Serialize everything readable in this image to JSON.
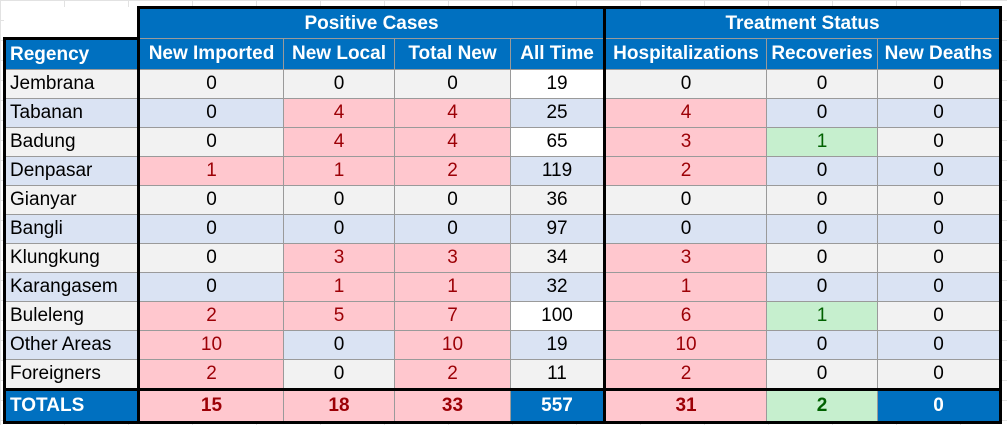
{
  "groups": {
    "positive_cases": "Positive Cases",
    "treatment_status": "Treatment Status"
  },
  "columns": [
    "Regency",
    "New Imported",
    "New Local",
    "Total New",
    "All Time",
    "Hospitalizations",
    "Recoveries",
    "New Deaths"
  ],
  "rows": [
    {
      "regency": "Jembrana",
      "new_imported": "0",
      "new_local": "0",
      "total_new": "0",
      "all_time": "19",
      "hospitalizations": "0",
      "recoveries": "0",
      "new_deaths": "0"
    },
    {
      "regency": "Tabanan",
      "new_imported": "0",
      "new_local": "4",
      "total_new": "4",
      "all_time": "25",
      "hospitalizations": "4",
      "recoveries": "0",
      "new_deaths": "0"
    },
    {
      "regency": "Badung",
      "new_imported": "0",
      "new_local": "4",
      "total_new": "4",
      "all_time": "65",
      "hospitalizations": "3",
      "recoveries": "1",
      "new_deaths": "0"
    },
    {
      "regency": "Denpasar",
      "new_imported": "1",
      "new_local": "1",
      "total_new": "2",
      "all_time": "119",
      "hospitalizations": "2",
      "recoveries": "0",
      "new_deaths": "0"
    },
    {
      "regency": "Gianyar",
      "new_imported": "0",
      "new_local": "0",
      "total_new": "0",
      "all_time": "36",
      "hospitalizations": "0",
      "recoveries": "0",
      "new_deaths": "0"
    },
    {
      "regency": "Bangli",
      "new_imported": "0",
      "new_local": "0",
      "total_new": "0",
      "all_time": "97",
      "hospitalizations": "0",
      "recoveries": "0",
      "new_deaths": "0"
    },
    {
      "regency": "Klungkung",
      "new_imported": "0",
      "new_local": "3",
      "total_new": "3",
      "all_time": "34",
      "hospitalizations": "3",
      "recoveries": "0",
      "new_deaths": "0"
    },
    {
      "regency": "Karangasem",
      "new_imported": "0",
      "new_local": "1",
      "total_new": "1",
      "all_time": "32",
      "hospitalizations": "1",
      "recoveries": "0",
      "new_deaths": "0"
    },
    {
      "regency": "Buleleng",
      "new_imported": "2",
      "new_local": "5",
      "total_new": "7",
      "all_time": "100",
      "hospitalizations": "6",
      "recoveries": "1",
      "new_deaths": "0"
    },
    {
      "regency": "Other Areas",
      "new_imported": "10",
      "new_local": "0",
      "total_new": "10",
      "all_time": "19",
      "hospitalizations": "10",
      "recoveries": "0",
      "new_deaths": "0"
    },
    {
      "regency": "Foreigners",
      "new_imported": "2",
      "new_local": "0",
      "total_new": "2",
      "all_time": "11",
      "hospitalizations": "2",
      "recoveries": "0",
      "new_deaths": "0"
    }
  ],
  "totals": {
    "label": "TOTALS",
    "new_imported": "15",
    "new_local": "18",
    "total_new": "33",
    "all_time": "557",
    "hospitalizations": "31",
    "recoveries": "2",
    "new_deaths": "0"
  },
  "colors": {
    "header_blue": "#0070c0",
    "highlight_pink": "#ffc7ce",
    "highlight_pink_text": "#9c0006",
    "highlight_green": "#c6efce",
    "highlight_green_text": "#006100",
    "row_gray": "#f2f2f2",
    "row_blue": "#dae3f3"
  }
}
